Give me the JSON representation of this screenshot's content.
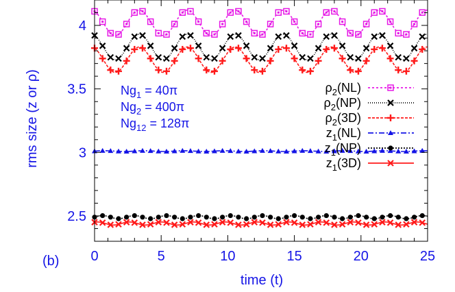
{
  "panel_label": "(b)",
  "chart_data": {
    "type": "line",
    "xlabel": "time (t)",
    "ylabel": "rms size (z or ρ)",
    "xlim": [
      0,
      25
    ],
    "ylim": [
      2.3,
      4.2
    ],
    "xticks": [
      0,
      5,
      10,
      15,
      20,
      25
    ],
    "yticks": [
      2.5,
      3,
      3.5,
      4
    ],
    "xtick_labels": [
      "0",
      "5",
      "10",
      "15",
      "20",
      "25"
    ],
    "ytick_labels": [
      "2.5",
      "3",
      "3.5",
      "4"
    ],
    "grid": false,
    "legend_position": "right-middle",
    "annotation": {
      "lines": [
        {
          "base": "Ng",
          "sub": "1",
          "value": " = 40π"
        },
        {
          "base": "Ng",
          "sub": "2",
          "value": " = 400π"
        },
        {
          "base": "Ng",
          "sub": "12",
          "value": " = 128π"
        }
      ]
    },
    "series": [
      {
        "name": "ρ2(NL)",
        "legend_base": "ρ",
        "legend_sub": "2",
        "legend_tail": "(NL)",
        "color": "#e619e6",
        "dash": "3,3",
        "marker": "open-square",
        "mean": 4.02,
        "amp": 0.1,
        "period": 3.6,
        "phase": 2.0
      },
      {
        "name": "ρ2(NP)",
        "legend_base": "ρ",
        "legend_sub": "2",
        "legend_tail": "(NP)",
        "color": "#000000",
        "dash": "1,2",
        "marker": "x",
        "mean": 3.83,
        "amp": 0.1,
        "period": 3.6,
        "phase": 2.0
      },
      {
        "name": "ρ2(3D)",
        "legend_base": "ρ",
        "legend_sub": "2",
        "legend_tail": "(3D)",
        "color": "#ff1a1a",
        "dash": "4,2",
        "marker": "plus",
        "mean": 3.73,
        "amp": 0.1,
        "period": 3.6,
        "phase": 2.0
      },
      {
        "name": "z1(NL)",
        "legend_base": "z",
        "legend_sub": "1",
        "legend_tail": "(NL)",
        "color": "#1414e6",
        "dash": "8,3,2,3",
        "marker": "triangle",
        "mean": 3.01,
        "amp": 0.003,
        "period": 3.0,
        "phase": 0.0
      },
      {
        "name": "z1(NP)",
        "legend_base": "z",
        "legend_sub": "1",
        "legend_tail": "(NP)",
        "color": "#000000",
        "dash": "2,2",
        "marker": "circle",
        "mean": 2.49,
        "amp": 0.012,
        "period": 2.4,
        "phase": 0.0
      },
      {
        "name": "z1(3D)",
        "legend_base": "z",
        "legend_sub": "1",
        "legend_tail": "(3D)",
        "color": "#ff1a1a",
        "dash": "",
        "marker": "x",
        "mean": 2.44,
        "amp": 0.012,
        "period": 2.4,
        "phase": 1.0
      }
    ],
    "marker_step": 0.6
  }
}
